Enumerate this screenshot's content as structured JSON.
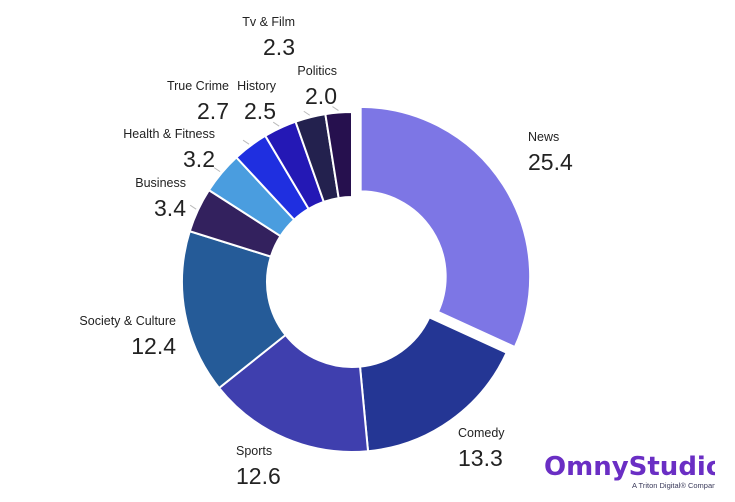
{
  "chart_data": {
    "type": "pie",
    "style": "donut",
    "categories": [
      "News",
      "Comedy",
      "Sports",
      "Society & Culture",
      "Business",
      "Health & Fitness",
      "True Crime",
      "History",
      "Tv & Film",
      "Politics"
    ],
    "values": [
      25.4,
      13.3,
      12.6,
      12.4,
      3.4,
      3.2,
      2.7,
      2.5,
      2.3,
      2.0
    ],
    "value_labels": [
      "25.4",
      "13.3",
      "12.6",
      "12.4",
      "3.4",
      "3.2",
      "2.7",
      "2.5",
      "2.3",
      "2.0"
    ],
    "colors": [
      "#7d76e5",
      "#243694",
      "#3f3fae",
      "#255b98",
      "#33215e",
      "#4a9ddf",
      "#1f2fe0",
      "#2418b5",
      "#23214e",
      "#26104e"
    ],
    "exploded": [
      "News"
    ],
    "legend": "none"
  },
  "logo": {
    "brand": "OmnyStudio",
    "tagline": "A Triton Digital® Company",
    "color": "#6a2ec4"
  }
}
